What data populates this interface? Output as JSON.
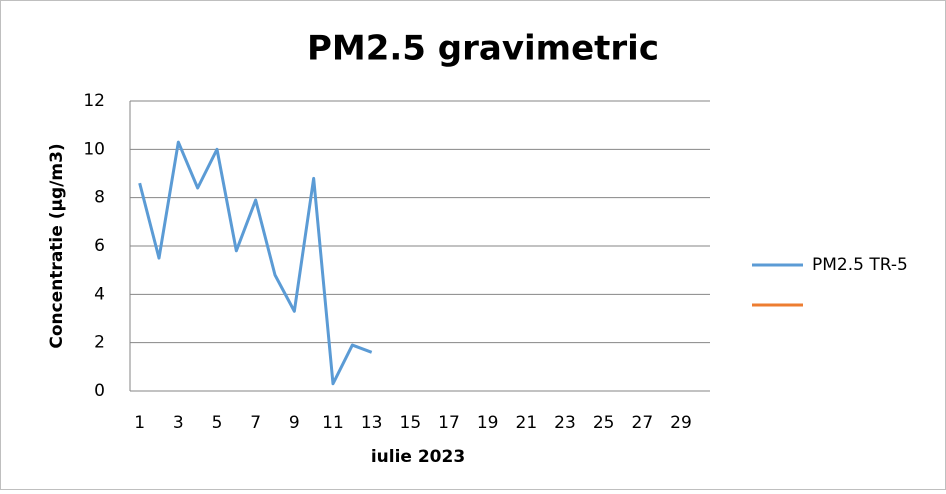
{
  "chart_data": {
    "type": "line",
    "title": "PM2.5 gravimetric",
    "x_label": "iulie 2023",
    "y_label": "Concentratie (µg/m3)",
    "categories": [
      1,
      null,
      3,
      null,
      5,
      null,
      7,
      null,
      9,
      null,
      11,
      null,
      13,
      null,
      15,
      null,
      17,
      null,
      19,
      null,
      21,
      null,
      23,
      null,
      25,
      null,
      27,
      null,
      29,
      null
    ],
    "series": [
      {
        "name": "PM2.5 TR-5",
        "color": "#5b9bd5",
        "values": [
          8.6,
          5.5,
          10.3,
          8.4,
          10.0,
          5.8,
          7.9,
          4.8,
          3.3,
          8.8,
          0.3,
          1.9,
          1.6,
          null,
          null,
          null,
          null,
          null,
          null,
          null,
          null,
          null,
          null,
          null,
          null,
          null,
          null,
          null,
          null,
          null
        ]
      },
      {
        "color": "#ed7d31",
        "values": [
          null,
          null,
          null,
          null,
          null,
          null,
          null,
          null,
          null,
          null,
          null,
          null,
          null,
          null,
          null,
          null,
          null,
          null,
          null,
          null,
          null,
          null,
          null,
          null,
          null,
          null,
          null,
          null,
          null,
          null
        ]
      }
    ],
    "ylim": [
      0,
      12
    ],
    "yticks": [
      0,
      2,
      4,
      6,
      8,
      10,
      12
    ],
    "grid": true,
    "legend": "right"
  }
}
